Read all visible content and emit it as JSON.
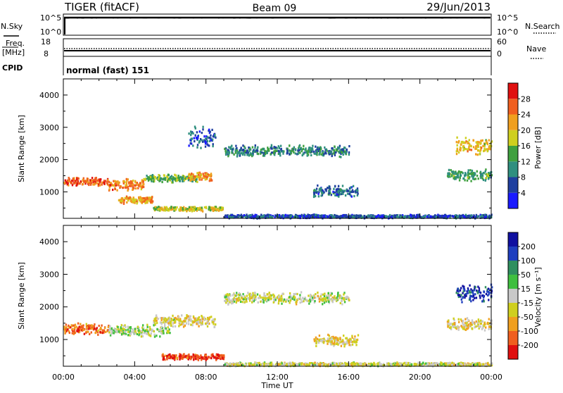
{
  "header": {
    "radar": "TIGER (fitACF)",
    "beam": "Beam 09",
    "date": "29/Jun/2013"
  },
  "noise_panel": {
    "left_label": "N.Sky",
    "right_label": "N.Search",
    "left_ticks": [
      "10^5",
      "10^0"
    ],
    "right_ticks": [
      "10^5",
      "10^0"
    ]
  },
  "freq_panel": {
    "left_label_1": "Freq.",
    "left_label_2": "[MHz]",
    "right_label": "Nave",
    "left_ticks": [
      "18",
      "8"
    ],
    "right_ticks": [
      "60",
      "0"
    ]
  },
  "cpid": {
    "label": "CPID",
    "text": "normal (fast) 151"
  },
  "x_axis": {
    "ticks": [
      "00:00",
      "04:00",
      "08:00",
      "12:00",
      "16:00",
      "20:00",
      "00:00"
    ],
    "label": "Time UT"
  },
  "colors": {
    "power": [
      "#1a1aff",
      "#1f3f9f",
      "#2f8f7f",
      "#3fa03f",
      "#cfcf1f",
      "#f09f1f",
      "#f05f1f",
      "#e01010"
    ],
    "velocity": [
      "#e01010",
      "#f05f1f",
      "#f09f1f",
      "#cfcf1f",
      "#c8c8c8",
      "#3fbf3f",
      "#2f8f5f",
      "#1f3fbf",
      "#1010a0"
    ]
  },
  "chart_data": [
    {
      "type": "heatmap",
      "panel": "power",
      "ylabel": "Slant Range [km]",
      "yticks": [
        "4000",
        "3000",
        "2000",
        "1000"
      ],
      "ylim": [
        180,
        4500
      ],
      "xlim_hours": [
        0,
        24
      ],
      "colorbar_label": "Power [dB]",
      "colorbar_ticks": [
        "28",
        "24",
        "20",
        "16",
        "12",
        "8",
        "4"
      ],
      "colorbar_range": [
        0,
        32
      ],
      "features": [
        {
          "t0": 0.0,
          "t1": 2.5,
          "r": 1350,
          "dr": 150,
          "level": 26
        },
        {
          "t0": 2.5,
          "t1": 4.5,
          "r": 1250,
          "dr": 200,
          "level": 24
        },
        {
          "t0": 3.0,
          "t1": 5.0,
          "r": 780,
          "dr": 120,
          "level": 22
        },
        {
          "t0": 4.5,
          "t1": 7.5,
          "r": 1450,
          "dr": 130,
          "level": 14
        },
        {
          "t0": 7.0,
          "t1": 8.3,
          "r": 1500,
          "dr": 150,
          "level": 22
        },
        {
          "t0": 5.0,
          "t1": 9.0,
          "r": 500,
          "dr": 80,
          "level": 18
        },
        {
          "t0": 7.0,
          "t1": 8.5,
          "r": 2700,
          "dr": 400,
          "level": 6
        },
        {
          "t0": 9.0,
          "t1": 16.0,
          "r": 2300,
          "dr": 200,
          "level": 10
        },
        {
          "t0": 14.0,
          "t1": 16.5,
          "r": 1050,
          "dr": 200,
          "level": 8
        },
        {
          "t0": 9.0,
          "t1": 24.0,
          "r": 270,
          "dr": 60,
          "level": 6
        },
        {
          "t0": 22.0,
          "t1": 24.0,
          "r": 2450,
          "dr": 300,
          "level": 20
        },
        {
          "t0": 21.5,
          "t1": 24.0,
          "r": 1550,
          "dr": 200,
          "level": 12
        }
      ]
    },
    {
      "type": "heatmap",
      "panel": "velocity",
      "ylabel": "Slant Range [km]",
      "yticks": [
        "4000",
        "3000",
        "2000",
        "1000"
      ],
      "ylim": [
        180,
        4500
      ],
      "xlim_hours": [
        0,
        24
      ],
      "colorbar_label": "Velocity [m s⁻¹]",
      "colorbar_ticks": [
        "200",
        "100",
        "50",
        "15",
        "-15",
        "-50",
        "-100",
        "-200"
      ],
      "colorbar_range": [
        -250,
        250
      ],
      "features": [
        {
          "t0": 0.0,
          "t1": 2.5,
          "r": 1350,
          "dr": 200,
          "level": -150
        },
        {
          "t0": 2.5,
          "t1": 6.0,
          "r": 1300,
          "dr": 200,
          "level": 0
        },
        {
          "t0": 5.0,
          "t1": 8.5,
          "r": 1600,
          "dr": 200,
          "level": -40
        },
        {
          "t0": 5.5,
          "t1": 9.0,
          "r": 500,
          "dr": 100,
          "level": -200
        },
        {
          "t0": 9.0,
          "t1": 16.0,
          "r": 2300,
          "dr": 200,
          "level": -20
        },
        {
          "t0": 14.0,
          "t1": 16.5,
          "r": 1000,
          "dr": 200,
          "level": -60
        },
        {
          "t0": 9.0,
          "t1": 24.0,
          "r": 270,
          "dr": 60,
          "level": -30
        },
        {
          "t0": 22.0,
          "t1": 24.0,
          "r": 2450,
          "dr": 300,
          "level": 180
        },
        {
          "t0": 21.5,
          "t1": 24.0,
          "r": 1500,
          "dr": 200,
          "level": -50
        }
      ]
    }
  ]
}
